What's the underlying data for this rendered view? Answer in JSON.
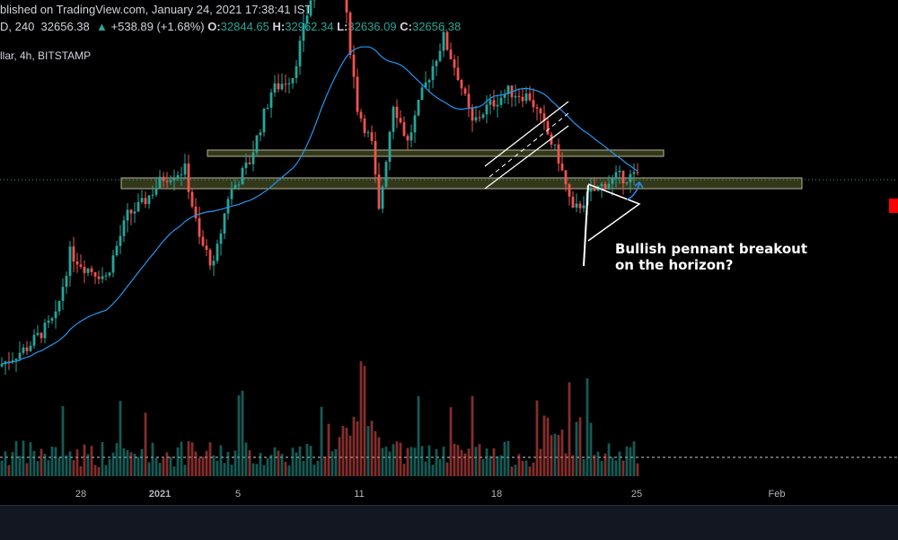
{
  "header": {
    "published": "blished on TradingView.com, January 24, 2021 17:38:41 IST",
    "symbol_prefix": "D, 240",
    "last": "32656.38",
    "change_arrow": "▲",
    "change": "+538.89 (+1.68%)",
    "o_label": "O:",
    "o_value": "32844.65",
    "h_label": "H:",
    "h_value": "32962.34",
    "l_label": "L:",
    "l_value": "32636.09",
    "c_label": "C:",
    "c_value": "32656.38"
  },
  "symbol_info": "llar, 4h, BITSTAMP",
  "annotation": {
    "line1": "Bullish pennant breakout",
    "line2": "on the horizon?"
  },
  "colors": {
    "up": "#26a69a",
    "down": "#ef5350",
    "ma": "#2196f3",
    "zone_border": "#c8c8a0",
    "zone_fill": "#3a3f1f",
    "drawing": "#ffffff",
    "last_price": "#ff0000"
  },
  "chart_data": {
    "type": "candlestick",
    "symbol": "BTC/USD",
    "interval": "4h",
    "exchange": "BITSTAMP",
    "x_tick_labels": [
      "28",
      "2021",
      "5",
      "11",
      "18",
      "25",
      "Feb"
    ],
    "series": [
      {
        "name": "OHLC",
        "last": {
          "open": 32844.65,
          "high": 32962.34,
          "low": 32636.09,
          "close": 32656.38
        }
      },
      {
        "name": "MA"
      },
      {
        "name": "Volume"
      }
    ],
    "annotations": [
      "Bullish pennant breakout",
      "on the horizon?"
    ]
  }
}
